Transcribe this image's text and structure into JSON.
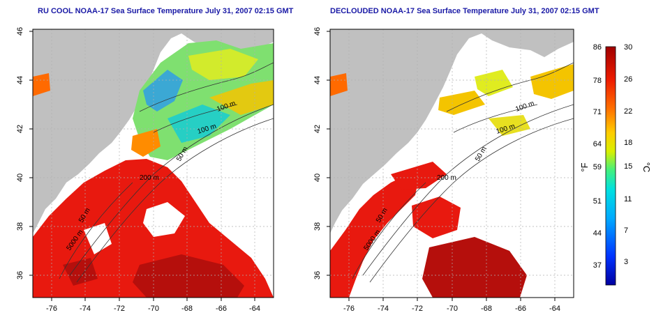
{
  "panels": [
    {
      "title": "RU COOL NOAA-17 Sea Surface Temperature July 31, 2007 02:15 GMT",
      "contour_labels": [
        "100 m",
        "100 m",
        "50 m",
        "200 m",
        "50 m",
        "5000 m"
      ]
    },
    {
      "title": "DECLOUDED NOAA-17 Sea Surface Temperature July 31, 2007 02:15 GMT",
      "contour_labels": [
        "100 m",
        "100 m",
        "50 m",
        "200 m",
        "50 m",
        "5000 m"
      ]
    }
  ],
  "map_axes": {
    "lon_ticks": [
      "-76",
      "-74",
      "-72",
      "-70",
      "-68",
      "-66",
      "-64"
    ],
    "lat_ticks": [
      "46",
      "44",
      "42",
      "40",
      "38",
      "36"
    ]
  },
  "colorbar": {
    "fahrenheit_label": "°F",
    "celsius_label": "°C",
    "fahrenheit_ticks": [
      "86",
      "78",
      "71",
      "64",
      "59",
      "51",
      "44",
      "37"
    ],
    "celsius_ticks": [
      "30",
      "26",
      "22",
      "18",
      "15",
      "11",
      "7",
      "3"
    ],
    "colors": [
      "#0000a0",
      "#0033ff",
      "#00aaff",
      "#00e0e0",
      "#40f080",
      "#d8f000",
      "#ffcc00",
      "#ff7000",
      "#ee1c00",
      "#a00000"
    ]
  },
  "colors": {
    "land": "#c0c0c0",
    "grid": "#b0b0b0",
    "warm": "#e8190f",
    "hot": "#b50f0c"
  }
}
